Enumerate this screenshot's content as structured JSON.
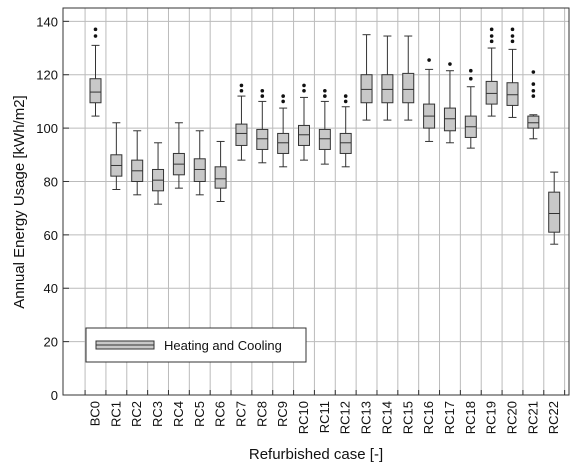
{
  "chart_data": {
    "type": "box",
    "xlabel": "Refurbished case [-]",
    "ylabel": "Annual Energy Usage [kWh/m2]",
    "ylim": [
      0,
      145
    ],
    "yticks": [
      0,
      20,
      40,
      60,
      80,
      100,
      120,
      140
    ],
    "legend": {
      "label": "Heating and Cooling",
      "placement": "bottom-left"
    },
    "colors": {
      "box_fill": "#c8c8c8",
      "stroke": "#333333",
      "grid": "#bbbbbb"
    },
    "categories": [
      "BC0",
      "RC1",
      "RC2",
      "RC3",
      "RC4",
      "RC5",
      "RC6",
      "RC7",
      "RC8",
      "RC9",
      "RC10",
      "RC11",
      "RC12",
      "RC13",
      "RC14",
      "RC15",
      "RC16",
      "RC17",
      "RC18",
      "RC19",
      "RC20",
      "RC21",
      "RC22"
    ],
    "boxes": [
      {
        "min": 104.5,
        "q1": 109.5,
        "median": 113.5,
        "q3": 118.5,
        "max": 131,
        "outliers": [
          134.5,
          137
        ]
      },
      {
        "min": 77,
        "q1": 82,
        "median": 86,
        "q3": 90,
        "max": 102,
        "outliers": []
      },
      {
        "min": 75,
        "q1": 80,
        "median": 84,
        "q3": 88,
        "max": 99,
        "outliers": []
      },
      {
        "min": 71.5,
        "q1": 76.5,
        "median": 80.5,
        "q3": 84.5,
        "max": 94.5,
        "outliers": []
      },
      {
        "min": 77.5,
        "q1": 82.5,
        "median": 86.5,
        "q3": 90.5,
        "max": 102,
        "outliers": []
      },
      {
        "min": 75,
        "q1": 80,
        "median": 84.5,
        "q3": 88.5,
        "max": 99,
        "outliers": []
      },
      {
        "min": 72.5,
        "q1": 77.5,
        "median": 81,
        "q3": 85.5,
        "max": 95,
        "outliers": []
      },
      {
        "min": 88,
        "q1": 93.5,
        "median": 98,
        "q3": 101.5,
        "max": 112,
        "outliers": [
          114,
          116
        ]
      },
      {
        "min": 87,
        "q1": 92,
        "median": 96,
        "q3": 99.5,
        "max": 110,
        "outliers": [
          112,
          114
        ]
      },
      {
        "min": 85.5,
        "q1": 90.5,
        "median": 94.5,
        "q3": 98,
        "max": 107.5,
        "outliers": [
          110,
          112
        ]
      },
      {
        "min": 88,
        "q1": 93.5,
        "median": 97.5,
        "q3": 101,
        "max": 111.5,
        "outliers": [
          114,
          116
        ]
      },
      {
        "min": 86.5,
        "q1": 92,
        "median": 96,
        "q3": 99.5,
        "max": 110,
        "outliers": [
          112,
          114
        ]
      },
      {
        "min": 85.5,
        "q1": 90.5,
        "median": 94.5,
        "q3": 98,
        "max": 108,
        "outliers": [
          110,
          112
        ]
      },
      {
        "min": 103,
        "q1": 109.5,
        "median": 114.5,
        "q3": 120,
        "max": 135,
        "outliers": []
      },
      {
        "min": 103,
        "q1": 109.5,
        "median": 114.5,
        "q3": 120,
        "max": 134.5,
        "outliers": []
      },
      {
        "min": 103,
        "q1": 109.5,
        "median": 114.5,
        "q3": 120.5,
        "max": 134.5,
        "outliers": []
      },
      {
        "min": 95,
        "q1": 100,
        "median": 104.5,
        "q3": 109,
        "max": 122,
        "outliers": [
          125.5
        ]
      },
      {
        "min": 94.5,
        "q1": 99,
        "median": 103.5,
        "q3": 107.5,
        "max": 121.5,
        "outliers": [
          124
        ]
      },
      {
        "min": 92.5,
        "q1": 96.5,
        "median": 100.5,
        "q3": 104.5,
        "max": 115.5,
        "outliers": [
          118.5,
          121.5
        ]
      },
      {
        "min": 104.5,
        "q1": 109,
        "median": 113,
        "q3": 117.5,
        "max": 130,
        "outliers": [
          132.5,
          134.5,
          137
        ]
      },
      {
        "min": 104,
        "q1": 108.5,
        "median": 112.5,
        "q3": 117,
        "max": 129.5,
        "outliers": [
          132.5,
          134.5,
          137
        ]
      },
      {
        "min": 96,
        "q1": 100,
        "median": 102,
        "q3": 104.5,
        "max": 105,
        "outliers": [
          112,
          114,
          116.5,
          121
        ]
      },
      {
        "min": 56.5,
        "q1": 61,
        "median": 68,
        "q3": 76,
        "max": 83.5,
        "outliers": []
      }
    ]
  }
}
